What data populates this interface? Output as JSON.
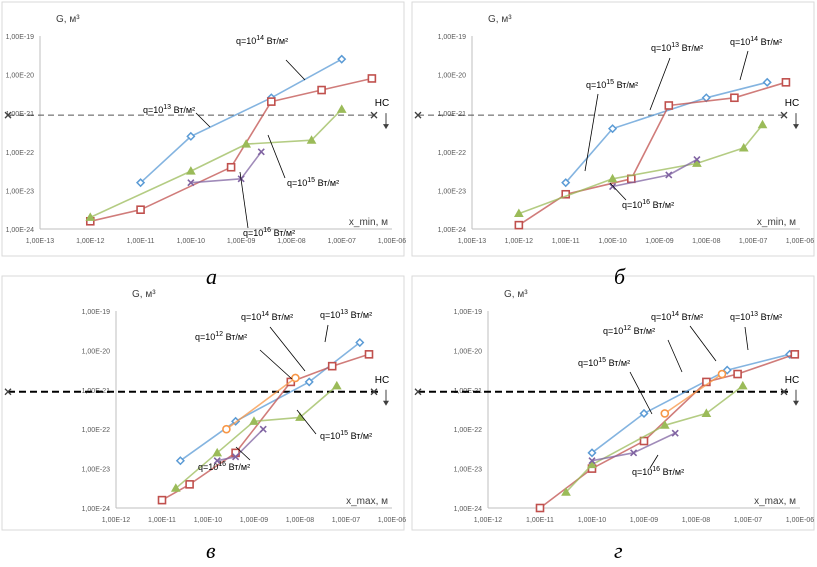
{
  "chart_data": [
    {
      "type": "line",
      "panel_label": "а",
      "ylabel": "G, м³",
      "xlabel": "x_min, м",
      "x_ticks": [
        "1,00E-13",
        "1,00E-12",
        "1,00E-11",
        "1,00E-10",
        "1,00E-09",
        "1,00E-08",
        "1,00E-07",
        "1,00E-06"
      ],
      "y_ticks": [
        "1,00E-19",
        "1,00E-20",
        "1,00E-21",
        "1,00E-22",
        "1,00E-23",
        "1,00E-24"
      ],
      "xlim_exp": [
        -13,
        -6
      ],
      "ylim_exp": [
        -24,
        -19
      ],
      "threshold": {
        "label": "НС",
        "value_exp": -21.05,
        "arrow": "down"
      },
      "series": [
        {
          "color": "#5b9bd5",
          "marker": "diamond",
          "label": {
            "q": "q=10",
            "p": "13",
            "u": " Вт/м²"
          },
          "points": [
            [
              -11,
              -22.8
            ],
            [
              -10,
              -21.6
            ],
            [
              -8.4,
              -20.6
            ],
            [
              -7,
              -19.6
            ]
          ]
        },
        {
          "color": "#c0504d",
          "marker": "square",
          "label": {
            "q": "q=10",
            "p": "14",
            "u": " Вт/м²"
          },
          "points": [
            [
              -12,
              -23.8
            ],
            [
              -11,
              -23.5
            ],
            [
              -9.2,
              -22.4
            ],
            [
              -8.4,
              -20.7
            ],
            [
              -7.4,
              -20.4
            ],
            [
              -6.4,
              -20.1
            ]
          ]
        },
        {
          "color": "#9bbb59",
          "marker": "triangle",
          "label": {
            "q": "q=10",
            "p": "15",
            "u": " Вт/м²"
          },
          "points": [
            [
              -12,
              -23.7
            ],
            [
              -10,
              -22.5
            ],
            [
              -8.9,
              -21.8
            ],
            [
              -7.6,
              -21.7
            ],
            [
              -7,
              -20.9
            ]
          ]
        },
        {
          "color": "#8064a2",
          "marker": "x",
          "label": {
            "q": "q=10",
            "p": "16",
            "u": " Вт/м²"
          },
          "points": [
            [
              -10,
              -22.8
            ],
            [
              -9,
              -22.7
            ],
            [
              -8.6,
              -22
            ]
          ]
        }
      ]
    },
    {
      "type": "line",
      "panel_label": "б",
      "ylabel": "G, м³",
      "xlabel": "x_min, м",
      "x_ticks": [
        "1,00E-13",
        "1,00E-12",
        "1,00E-11",
        "1,00E-10",
        "1,00E-09",
        "1,00E-08",
        "1,00E-07",
        "1,00E-06"
      ],
      "y_ticks": [
        "1,00E-19",
        "1,00E-20",
        "1,00E-21",
        "1,00E-22",
        "1,00E-23",
        "1,00E-24"
      ],
      "xlim_exp": [
        -13,
        -6
      ],
      "ylim_exp": [
        -24,
        -19
      ],
      "threshold": {
        "label": "НС",
        "value_exp": -21.05,
        "arrow": "down"
      },
      "series": [
        {
          "color": "#5b9bd5",
          "marker": "diamond",
          "label": {
            "q": "q=10",
            "p": "13",
            "u": " Вт/м²"
          },
          "points": [
            [
              -11,
              -22.8
            ],
            [
              -10,
              -21.4
            ],
            [
              -8,
              -20.6
            ],
            [
              -6.7,
              -20.2
            ]
          ]
        },
        {
          "color": "#c0504d",
          "marker": "square",
          "label": {
            "q": "q=10",
            "p": "14",
            "u": " Вт/м²"
          },
          "points": [
            [
              -12,
              -23.9
            ],
            [
              -11,
              -23.1
            ],
            [
              -9.6,
              -22.7
            ],
            [
              -8.8,
              -20.8
            ],
            [
              -7.4,
              -20.6
            ],
            [
              -6.3,
              -20.2
            ]
          ]
        },
        {
          "color": "#9bbb59",
          "marker": "triangle",
          "label": {
            "q": "q=10",
            "p": "15",
            "u": " Вт/м²"
          },
          "points": [
            [
              -12,
              -23.6
            ],
            [
              -10,
              -22.7
            ],
            [
              -8.2,
              -22.3
            ],
            [
              -7.2,
              -21.9
            ],
            [
              -6.8,
              -21.3
            ]
          ]
        },
        {
          "color": "#8064a2",
          "marker": "x",
          "label": {
            "q": "q=10",
            "p": "16",
            "u": " Вт/м²"
          },
          "points": [
            [
              -10,
              -22.9
            ],
            [
              -8.8,
              -22.6
            ],
            [
              -8.2,
              -22.2
            ]
          ]
        }
      ]
    },
    {
      "type": "line",
      "panel_label": "в",
      "ylabel": "G, м³",
      "xlabel": "x_max, м",
      "x_ticks": [
        "1,00E-12",
        "1,00E-11",
        "1,00E-10",
        "1,00E-09",
        "1,00E-08",
        "1,00E-07",
        "1,00E-06"
      ],
      "y_ticks": [
        "1,00E-19",
        "1,00E-20",
        "1,00E-21",
        "1,00E-22",
        "1,00E-23",
        "1,00E-24"
      ],
      "xlim_exp": [
        -12,
        -6
      ],
      "ylim_exp": [
        -24,
        -19
      ],
      "threshold": {
        "label": "НС",
        "value_exp": -21.05,
        "arrow": "down"
      },
      "series": [
        {
          "color": "#5b9bd5",
          "marker": "diamond",
          "label": {
            "q": "q=10",
            "p": "13",
            "u": " Вт/м²"
          },
          "points": [
            [
              -10.6,
              -22.8
            ],
            [
              -9.4,
              -21.8
            ],
            [
              -7.8,
              -20.8
            ],
            [
              -6.7,
              -19.8
            ]
          ]
        },
        {
          "color": "#c0504d",
          "marker": "square",
          "label": {
            "q": "q=10",
            "p": "14",
            "u": " Вт/м²"
          },
          "points": [
            [
              -11,
              -23.8
            ],
            [
              -10.4,
              -23.4
            ],
            [
              -9.4,
              -22.6
            ],
            [
              -8.2,
              -20.8
            ],
            [
              -7.3,
              -20.4
            ],
            [
              -6.5,
              -20.1
            ]
          ]
        },
        {
          "color": "#f79646",
          "marker": "circle",
          "label": {
            "q": "q=10",
            "p": "12",
            "u": " Вт/м²"
          },
          "points": [
            [
              -8.1,
              -20.7
            ],
            [
              -9.6,
              -22
            ]
          ]
        },
        {
          "color": "#9bbb59",
          "marker": "triangle",
          "label": {
            "q": "q=10",
            "p": "15",
            "u": " Вт/м²"
          },
          "points": [
            [
              -10.7,
              -23.5
            ],
            [
              -9.8,
              -22.6
            ],
            [
              -9,
              -21.8
            ],
            [
              -8,
              -21.7
            ],
            [
              -7.2,
              -20.9
            ]
          ]
        },
        {
          "color": "#8064a2",
          "marker": "x",
          "label": {
            "q": "q=10",
            "p": "16",
            "u": " Вт/м²"
          },
          "points": [
            [
              -9.8,
              -22.8
            ],
            [
              -9.4,
              -22.7
            ],
            [
              -8.8,
              -22
            ]
          ]
        }
      ]
    },
    {
      "type": "line",
      "panel_label": "г",
      "ylabel": "G, м³",
      "xlabel": "x_max, м",
      "x_ticks": [
        "1,00E-12",
        "1,00E-11",
        "1,00E-10",
        "1,00E-09",
        "1,00E-08",
        "1,00E-07",
        "1,00E-06"
      ],
      "y_ticks": [
        "1,00E-19",
        "1,00E-20",
        "1,00E-21",
        "1,00E-22",
        "1,00E-23",
        "1,00E-24"
      ],
      "xlim_exp": [
        -12,
        -6
      ],
      "ylim_exp": [
        -24,
        -19
      ],
      "threshold": {
        "label": "НС",
        "value_exp": -21.05,
        "arrow": "down"
      },
      "series": [
        {
          "color": "#5b9bd5",
          "marker": "diamond",
          "label": {
            "q": "q=10",
            "p": "13",
            "u": " Вт/м²"
          },
          "points": [
            [
              -10,
              -22.6
            ],
            [
              -9,
              -21.6
            ],
            [
              -7.4,
              -20.5
            ],
            [
              -6.2,
              -20.1
            ]
          ]
        },
        {
          "color": "#c0504d",
          "marker": "square",
          "label": {
            "q": "q=10",
            "p": "14",
            "u": " Вт/м²"
          },
          "points": [
            [
              -11,
              -24
            ],
            [
              -10,
              -23
            ],
            [
              -9,
              -22.3
            ],
            [
              -7.8,
              -20.8
            ],
            [
              -7.2,
              -20.6
            ],
            [
              -6.1,
              -20.1
            ]
          ]
        },
        {
          "color": "#f79646",
          "marker": "circle",
          "label": {
            "q": "q=10",
            "p": "12",
            "u": " Вт/м²"
          },
          "points": [
            [
              -7.5,
              -20.6
            ],
            [
              -8.6,
              -21.6
            ]
          ]
        },
        {
          "color": "#9bbb59",
          "marker": "triangle",
          "label": {
            "q": "q=10",
            "p": "15",
            "u": " Вт/м²"
          },
          "points": [
            [
              -10.5,
              -23.6
            ],
            [
              -10,
              -22.9
            ],
            [
              -8.6,
              -21.9
            ],
            [
              -7.8,
              -21.6
            ],
            [
              -7.1,
              -20.9
            ]
          ]
        },
        {
          "color": "#8064a2",
          "marker": "x",
          "label": {
            "q": "q=10",
            "p": "16",
            "u": " Вт/м²"
          },
          "points": [
            [
              -10,
              -22.8
            ],
            [
              -9.2,
              -22.6
            ],
            [
              -8.4,
              -22.1
            ]
          ]
        }
      ]
    }
  ]
}
